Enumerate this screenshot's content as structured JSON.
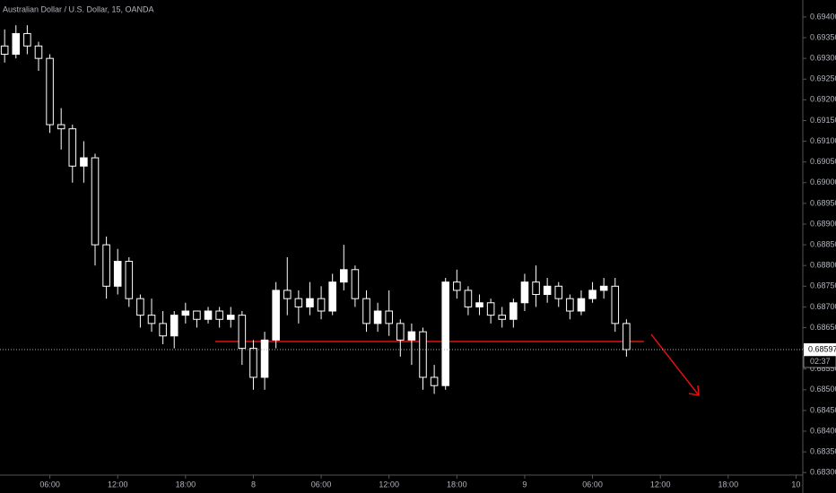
{
  "chart_data": {
    "type": "candlestick",
    "title": "Australian Dollar / U.S. Dollar, 15, OANDA",
    "x": [
      2,
      3,
      4,
      5,
      6,
      7,
      8,
      9,
      10,
      11,
      12,
      13,
      14,
      15,
      16,
      17,
      18,
      19,
      20,
      21,
      22,
      23,
      24,
      25,
      26,
      27,
      28,
      29,
      30,
      31,
      32,
      33,
      34,
      35,
      36,
      37,
      38,
      39,
      40,
      41,
      42,
      43,
      44,
      45,
      46,
      47,
      48,
      49,
      50,
      51,
      52,
      53,
      54,
      55,
      56,
      57
    ],
    "open": [
      0.6933,
      0.6931,
      0.6936,
      0.6933,
      0.693,
      0.6914,
      0.6913,
      0.6904,
      0.6906,
      0.6885,
      0.6875,
      0.6881,
      0.6872,
      0.6868,
      0.6866,
      0.6863,
      0.6868,
      0.6869,
      0.6867,
      0.6869,
      0.6867,
      0.6868,
      0.686,
      0.6853,
      0.6862,
      0.6874,
      0.6872,
      0.687,
      0.6872,
      0.6869,
      0.6876,
      0.6879,
      0.6872,
      0.6866,
      0.6869,
      0.6866,
      0.6862,
      0.6864,
      0.6853,
      0.6851,
      0.6876,
      0.6874,
      0.687,
      0.6871,
      0.6868,
      0.6867,
      0.6871,
      0.6876,
      0.6873,
      0.6875,
      0.6872,
      0.6869,
      0.6872,
      0.6874,
      0.6875,
      0.6866
    ],
    "high": [
      0.6937,
      0.6938,
      0.6938,
      0.6934,
      0.6931,
      0.6918,
      0.6914,
      0.691,
      0.6907,
      0.6887,
      0.6884,
      0.6882,
      0.6873,
      0.6872,
      0.6869,
      0.6869,
      0.6871,
      0.6869,
      0.687,
      0.687,
      0.687,
      0.6869,
      0.6862,
      0.6864,
      0.6876,
      0.6882,
      0.6874,
      0.6876,
      0.6875,
      0.6878,
      0.6885,
      0.688,
      0.6874,
      0.6871,
      0.6874,
      0.6867,
      0.6866,
      0.6865,
      0.6856,
      0.6877,
      0.6879,
      0.6875,
      0.6873,
      0.6872,
      0.687,
      0.6872,
      0.6878,
      0.688,
      0.6877,
      0.6876,
      0.6873,
      0.6874,
      0.6876,
      0.6877,
      0.6877,
      0.6867
    ],
    "low": [
      0.6929,
      0.693,
      0.6931,
      0.6927,
      0.6912,
      0.6908,
      0.69,
      0.69,
      0.688,
      0.6872,
      0.6873,
      0.687,
      0.6865,
      0.6864,
      0.6861,
      0.686,
      0.6866,
      0.6865,
      0.6866,
      0.6865,
      0.6865,
      0.6856,
      0.685,
      0.685,
      0.686,
      0.6868,
      0.6866,
      0.6868,
      0.6867,
      0.6868,
      0.6874,
      0.687,
      0.6864,
      0.6864,
      0.6863,
      0.6858,
      0.6856,
      0.685,
      0.6849,
      0.685,
      0.6872,
      0.6868,
      0.6868,
      0.6866,
      0.6865,
      0.6865,
      0.6869,
      0.687,
      0.6871,
      0.687,
      0.6867,
      0.6868,
      0.6871,
      0.6872,
      0.6864,
      0.6858
    ],
    "close": [
      0.6931,
      0.6936,
      0.6933,
      0.693,
      0.6914,
      0.6913,
      0.6904,
      0.6906,
      0.6885,
      0.6875,
      0.6881,
      0.6872,
      0.6868,
      0.6866,
      0.6863,
      0.6868,
      0.6869,
      0.6867,
      0.6869,
      0.6867,
      0.6868,
      0.686,
      0.6853,
      0.6862,
      0.6874,
      0.6872,
      0.687,
      0.6872,
      0.6869,
      0.6876,
      0.6879,
      0.6872,
      0.6866,
      0.6869,
      0.6866,
      0.6862,
      0.6864,
      0.6853,
      0.6851,
      0.6876,
      0.6874,
      0.687,
      0.6871,
      0.6868,
      0.6867,
      0.6871,
      0.6876,
      0.6873,
      0.6875,
      0.6872,
      0.6869,
      0.6872,
      0.6874,
      0.6875,
      0.6866,
      0.68597
    ],
    "up_color": "#ffffff",
    "down_color": "#000000",
    "wick_color": "#ffffff",
    "xlim": [
      1.59,
      72.6
    ],
    "xticks": [
      {
        "value": 6,
        "label": "06:00"
      },
      {
        "value": 12,
        "label": "12:00"
      },
      {
        "value": 18,
        "label": "18:00"
      },
      {
        "value": 24,
        "label": "8"
      },
      {
        "value": 30,
        "label": "06:00"
      },
      {
        "value": 36,
        "label": "12:00"
      },
      {
        "value": 42,
        "label": "18:00"
      },
      {
        "value": 48,
        "label": "9"
      },
      {
        "value": 54,
        "label": "06:00"
      },
      {
        "value": 60,
        "label": "12:00"
      },
      {
        "value": 66,
        "label": "18:00"
      },
      {
        "value": 72,
        "label": "10"
      }
    ],
    "ylim": [
      0.68294,
      0.69441
    ],
    "yticks": [
      {
        "value": 0.683,
        "label": "0.68300"
      },
      {
        "value": 0.6835,
        "label": "0.68350"
      },
      {
        "value": 0.684,
        "label": "0.68400"
      },
      {
        "value": 0.6845,
        "label": "0.68450"
      },
      {
        "value": 0.685,
        "label": "0.68500"
      },
      {
        "value": 0.6855,
        "label": "0.68550"
      },
      {
        "value": 0.686,
        "label": "0.68600"
      },
      {
        "value": 0.6865,
        "label": "0.68650"
      },
      {
        "value": 0.687,
        "label": "0.68700"
      },
      {
        "value": 0.6875,
        "label": "0.68750"
      },
      {
        "value": 0.688,
        "label": "0.68800"
      },
      {
        "value": 0.6885,
        "label": "0.68850"
      },
      {
        "value": 0.689,
        "label": "0.68900"
      },
      {
        "value": 0.6895,
        "label": "0.68950"
      },
      {
        "value": 0.69,
        "label": "0.69000"
      },
      {
        "value": 0.6905,
        "label": "0.69050"
      },
      {
        "value": 0.691,
        "label": "0.69100"
      },
      {
        "value": 0.6915,
        "label": "0.69150"
      },
      {
        "value": 0.692,
        "label": "0.69200"
      },
      {
        "value": 0.6925,
        "label": "0.69250"
      },
      {
        "value": 0.693,
        "label": "0.69300"
      },
      {
        "value": 0.6935,
        "label": "0.69350"
      },
      {
        "value": 0.694,
        "label": "0.69400"
      }
    ],
    "last_price": 0.68597,
    "countdown": "02:37",
    "grid": false
  }
}
